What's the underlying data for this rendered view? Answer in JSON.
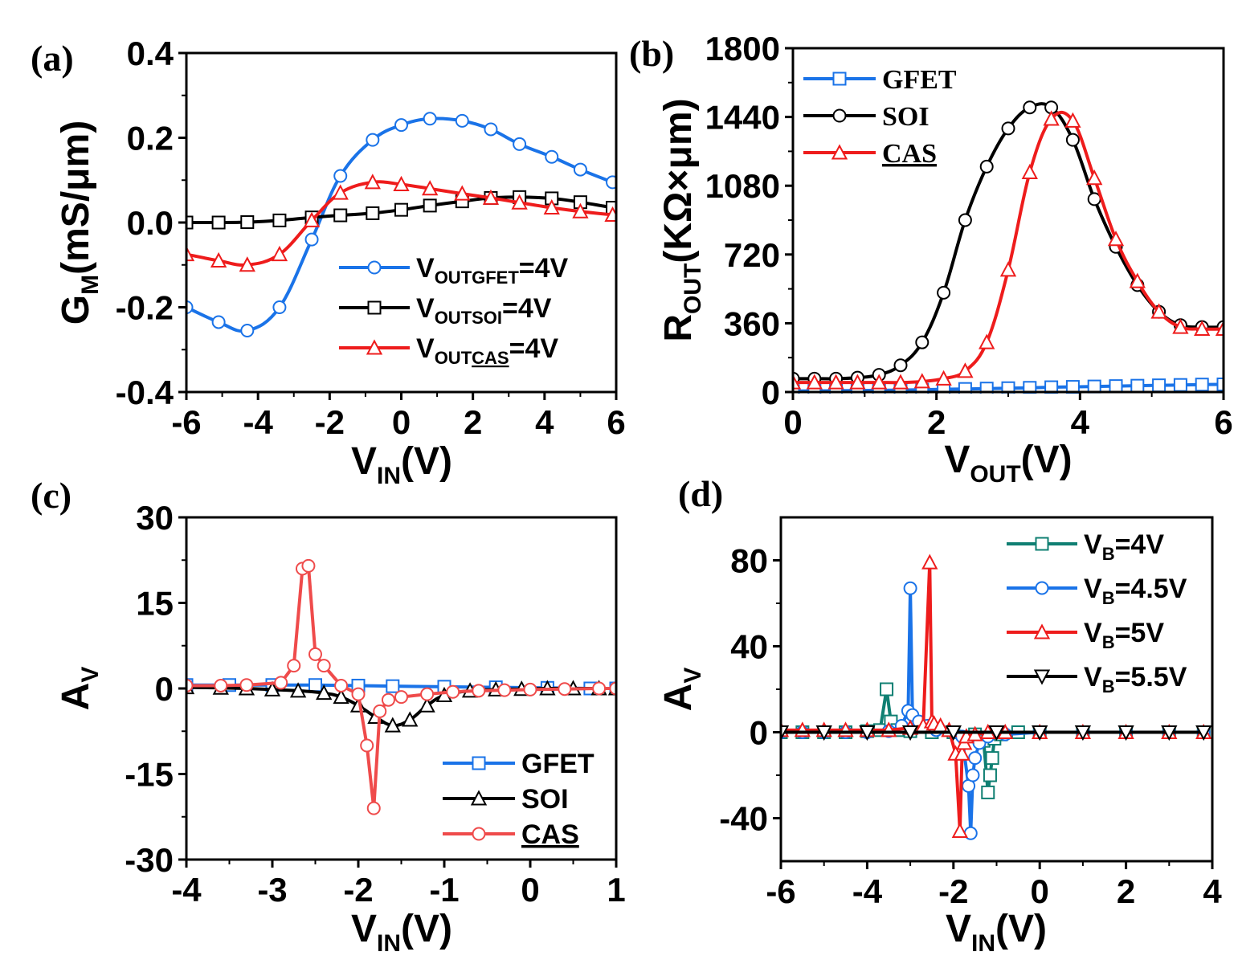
{
  "colors": {
    "blue": "#1a73e8",
    "black": "#000000",
    "red": "#ee1c1c",
    "light_red": "#ef4b4b",
    "teal": "#0f7f72"
  },
  "chart_data": [
    {
      "id": "a",
      "panel_label": "(a)",
      "type": "line",
      "xlabel": {
        "main": "V",
        "sub": "IN",
        "tail": "(V)"
      },
      "ylabel": {
        "main": "G",
        "sub": "M",
        "tail": "(mS/μm)"
      },
      "xlim": [
        -6,
        6
      ],
      "ylim": [
        -0.4,
        0.4
      ],
      "xticks": [
        -6,
        -4,
        -2,
        0,
        2,
        4,
        6
      ],
      "yticks": [
        -0.4,
        -0.2,
        0.0,
        0.2,
        0.4
      ],
      "ytick_labels": [
        "-0.4",
        "-0.2",
        "0.0",
        "0.2",
        "0.4"
      ],
      "legend_position": "bottom-right",
      "series": [
        {
          "name": "V",
          "name_sub": "OUTGFET",
          "name_tail": "=4V",
          "color": "#1a73e8",
          "marker": "circle",
          "x": [
            -6,
            -5.1,
            -4.3,
            -3.4,
            -2.5,
            -1.7,
            -0.8,
            0,
            0.8,
            1.7,
            2.5,
            3.3,
            4.2,
            5,
            5.9
          ],
          "y": [
            -0.2,
            -0.235,
            -0.255,
            -0.2,
            -0.04,
            0.11,
            0.195,
            0.23,
            0.245,
            0.24,
            0.22,
            0.185,
            0.155,
            0.125,
            0.095
          ]
        },
        {
          "name": "V",
          "name_sub": "OUTSOI",
          "name_tail": "=4V",
          "color": "#000000",
          "marker": "square",
          "x": [
            -6,
            -5.1,
            -4.3,
            -3.4,
            -2.5,
            -1.7,
            -0.8,
            0,
            0.8,
            1.7,
            2.5,
            3.3,
            4.2,
            5,
            5.9
          ],
          "y": [
            0.0,
            0.0,
            0.001,
            0.005,
            0.012,
            0.017,
            0.022,
            0.03,
            0.04,
            0.05,
            0.058,
            0.06,
            0.057,
            0.048,
            0.035
          ]
        },
        {
          "name": "V",
          "name_sub": "OUTCAS",
          "name_tail": "=4V",
          "color": "#ee1c1c",
          "marker": "triangle",
          "sub_underline": "CAS",
          "x": [
            -6,
            -5.1,
            -4.3,
            -3.4,
            -2.5,
            -1.7,
            -0.8,
            0,
            0.8,
            1.7,
            2.5,
            3.3,
            4.2,
            5,
            5.9
          ],
          "y": [
            -0.075,
            -0.09,
            -0.1,
            -0.075,
            0.005,
            0.07,
            0.095,
            0.09,
            0.08,
            0.068,
            0.058,
            0.047,
            0.035,
            0.026,
            0.018
          ]
        }
      ]
    },
    {
      "id": "b",
      "panel_label": "(b)",
      "type": "line",
      "xlabel": {
        "main": "V",
        "sub": "OUT",
        "tail": "(V)"
      },
      "ylabel": {
        "main": "R",
        "sub": "OUT",
        "tail": "(KΩ×μm)"
      },
      "xlim": [
        0,
        6
      ],
      "ylim": [
        0,
        1800
      ],
      "xticks": [
        0,
        2,
        4,
        6
      ],
      "yticks": [
        0,
        360,
        720,
        1080,
        1440,
        1800
      ],
      "ytick_labels": [
        "0",
        "360",
        "720",
        "1080",
        "1440",
        "1800"
      ],
      "legend_position": "top-left",
      "series": [
        {
          "name": "GFET",
          "color": "#1a73e8",
          "marker": "square",
          "x": [
            0,
            0.3,
            0.6,
            0.9,
            1.2,
            1.5,
            1.8,
            2.1,
            2.4,
            2.7,
            3.0,
            3.3,
            3.6,
            3.9,
            4.2,
            4.5,
            4.8,
            5.1,
            5.4,
            5.7,
            6.0
          ],
          "y": [
            5,
            6,
            7,
            8,
            9,
            10,
            12,
            14,
            16,
            18,
            20,
            22,
            25,
            27,
            29,
            31,
            33,
            35,
            37,
            39,
            40
          ]
        },
        {
          "name": "SOI",
          "color": "#000000",
          "marker": "circle",
          "x": [
            0,
            0.3,
            0.6,
            0.9,
            1.2,
            1.5,
            1.8,
            2.1,
            2.4,
            2.7,
            3.0,
            3.3,
            3.6,
            3.9,
            4.2,
            4.5,
            4.8,
            5.1,
            5.4,
            5.7,
            6.0
          ],
          "y": [
            70,
            70,
            70,
            75,
            90,
            140,
            260,
            520,
            900,
            1180,
            1380,
            1490,
            1490,
            1320,
            1010,
            760,
            560,
            420,
            350,
            340,
            340
          ]
        },
        {
          "name": "CAS",
          "color": "#ee1c1c",
          "marker": "triangle",
          "underline": true,
          "x": [
            0,
            0.3,
            0.6,
            0.9,
            1.2,
            1.5,
            1.8,
            2.1,
            2.4,
            2.7,
            3.0,
            3.3,
            3.6,
            3.9,
            4.2,
            4.5,
            4.8,
            5.1,
            5.4,
            5.7,
            6.0
          ],
          "y": [
            50,
            50,
            50,
            50,
            50,
            50,
            55,
            70,
            110,
            260,
            640,
            1150,
            1430,
            1420,
            1120,
            800,
            580,
            420,
            340,
            330,
            330
          ]
        }
      ]
    },
    {
      "id": "c",
      "panel_label": "(c)",
      "type": "line",
      "xlabel": {
        "main": "V",
        "sub": "IN",
        "tail": "(V)"
      },
      "ylabel": {
        "main": "A",
        "sub": "V",
        "tail": ""
      },
      "xlim": [
        -4,
        1
      ],
      "ylim": [
        -30,
        30
      ],
      "xticks": [
        -4,
        -3,
        -2,
        -1,
        0,
        1
      ],
      "yticks": [
        -30,
        -15,
        0,
        15,
        30
      ],
      "ytick_labels": [
        "-30",
        "-15",
        "0",
        "15",
        "30"
      ],
      "legend_position": "bottom-right",
      "series": [
        {
          "name": "GFET",
          "color": "#1a73e8",
          "marker": "square",
          "x": [
            -4,
            -3.5,
            -3.0,
            -2.5,
            -2.0,
            -1.6,
            -1.0,
            -0.4,
            0.2,
            0.7,
            1.0
          ],
          "y": [
            0.6,
            0.6,
            0.6,
            0.6,
            0.5,
            0.4,
            0.3,
            0.2,
            0.1,
            0.0,
            0.0
          ]
        },
        {
          "name": "SOI",
          "color": "#000000",
          "marker": "triangle",
          "x": [
            -4,
            -3.6,
            -3.3,
            -3.0,
            -2.7,
            -2.4,
            -2.2,
            -2.0,
            -1.8,
            -1.6,
            -1.4,
            -1.2,
            -1.0,
            -0.7,
            -0.4,
            -0.1,
            0.2,
            0.5,
            0.8,
            1.0
          ],
          "y": [
            0.2,
            0.1,
            0.0,
            -0.2,
            -0.4,
            -0.8,
            -1.5,
            -3.0,
            -5.0,
            -6.5,
            -5.5,
            -3.0,
            -1.2,
            -0.4,
            -0.2,
            -0.1,
            0.0,
            0.0,
            0.0,
            0.0
          ]
        },
        {
          "name": "CAS",
          "color": "#ef4b4b",
          "marker": "circle",
          "underline": true,
          "x": [
            -4,
            -3.6,
            -3.3,
            -2.9,
            -2.75,
            -2.65,
            -2.58,
            -2.5,
            -2.4,
            -2.2,
            -2.0,
            -1.9,
            -1.82,
            -1.75,
            -1.65,
            -1.5,
            -1.2,
            -0.9,
            -0.6,
            -0.3,
            0.0,
            0.4,
            0.8,
            1.0
          ],
          "y": [
            0.5,
            0.5,
            0.6,
            1.0,
            4.0,
            21.0,
            21.5,
            6.0,
            4.0,
            0.5,
            -1.0,
            -10.0,
            -21.0,
            -4.0,
            -2.0,
            -1.5,
            -1.0,
            -0.6,
            -0.4,
            -0.3,
            -0.2,
            -0.1,
            0.0,
            0.0
          ]
        }
      ]
    },
    {
      "id": "d",
      "panel_label": "(d)",
      "type": "line",
      "xlabel": {
        "main": "V",
        "sub": "IN",
        "tail": "(V)"
      },
      "ylabel": {
        "main": "A",
        "sub": "V",
        "tail": ""
      },
      "xlim": [
        -6,
        4
      ],
      "ylim": [
        -60,
        100
      ],
      "xticks": [
        -6,
        -4,
        -2,
        0,
        2,
        4
      ],
      "yticks": [
        -40,
        0,
        40,
        80
      ],
      "ytick_labels": [
        "-40",
        "0",
        "40",
        "80"
      ],
      "legend_position": "top-right",
      "series": [
        {
          "name": "V",
          "name_sub": "B",
          "name_tail": "=4V",
          "color": "#0f7f72",
          "marker": "square",
          "x": [
            -6,
            -5.5,
            -5,
            -4.5,
            -4,
            -3.7,
            -3.55,
            -3.45,
            -3.3,
            -3,
            -2.5,
            -2,
            -1.5,
            -1.3,
            -1.2,
            -1.15,
            -1.1,
            -1.05,
            -0.9,
            -0.5,
            0,
            1,
            2,
            3,
            3.8
          ],
          "y": [
            0,
            0,
            0,
            0,
            0.5,
            1,
            20,
            5,
            1,
            0.5,
            0,
            0,
            -1,
            -4,
            -28,
            -20,
            -12,
            -3,
            -1,
            0,
            0,
            0,
            0,
            0,
            0
          ]
        },
        {
          "name": "V",
          "name_sub": "B",
          "name_tail": "=4.5V",
          "color": "#1a73e8",
          "marker": "circle",
          "x": [
            -6,
            -5.5,
            -5,
            -4.5,
            -4,
            -3.5,
            -3.2,
            -3.05,
            -3.0,
            -2.95,
            -2.8,
            -2.6,
            -2.4,
            -2.0,
            -1.8,
            -1.65,
            -1.6,
            -1.55,
            -1.5,
            -1.4,
            -1.2,
            -0.8,
            0,
            1,
            2,
            3,
            3.8
          ],
          "y": [
            0,
            0,
            0,
            0,
            0,
            0.5,
            3,
            10,
            67,
            8,
            5,
            3,
            1,
            0,
            -2,
            -25,
            -47,
            -20,
            -12,
            -5,
            -2,
            -1,
            0,
            0,
            0,
            0,
            0
          ]
        },
        {
          "name": "V",
          "name_sub": "B",
          "name_tail": "=5V",
          "color": "#ee1c1c",
          "marker": "triangle",
          "x": [
            -6,
            -5.5,
            -5,
            -4.5,
            -4,
            -3.5,
            -3,
            -2.7,
            -2.55,
            -2.5,
            -2.45,
            -2.3,
            -2.1,
            -1.95,
            -1.85,
            -1.8,
            -1.75,
            -1.7,
            -1.5,
            -1.2,
            -0.8,
            0,
            1,
            2,
            3,
            3.8
          ],
          "y": [
            1,
            1,
            1,
            1,
            1,
            1,
            2,
            3,
            79,
            5,
            4,
            3,
            1,
            -10,
            -46,
            -10,
            -5,
            -2,
            -1,
            0,
            0,
            0,
            0,
            0,
            0,
            0
          ]
        },
        {
          "name": "V",
          "name_sub": "B",
          "name_tail": "=5.5V",
          "color": "#000000",
          "marker": "triangle-down",
          "x": [
            -6,
            -5,
            -4,
            -3,
            -2,
            -1,
            0,
            1,
            2,
            3,
            3.8
          ],
          "y": [
            0,
            0,
            0,
            0,
            0,
            0,
            0,
            0,
            0,
            0,
            0
          ]
        }
      ]
    }
  ]
}
